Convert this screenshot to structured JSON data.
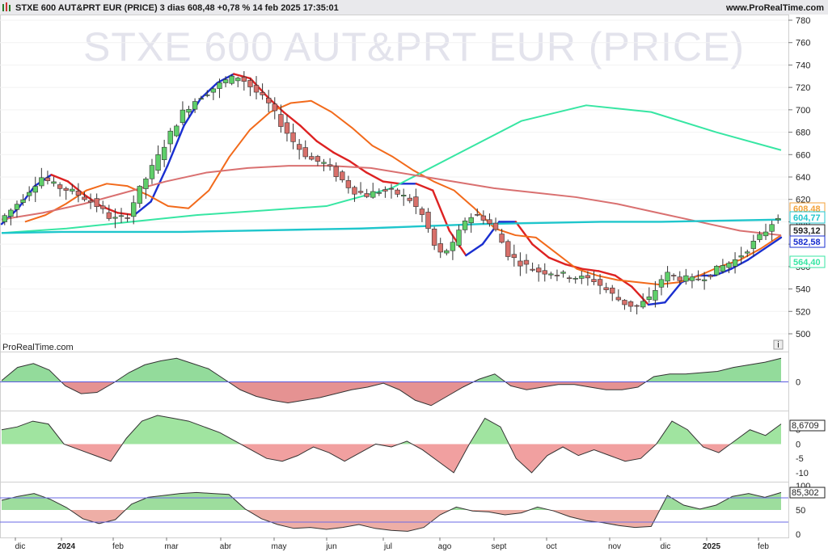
{
  "header": {
    "title_line": "STXE 600 AUT&PRT EUR (PRICE) 3 dias 608,48 +0,78 % 14 feb 2025 17:35:01",
    "site": "www.ProRealTime.com",
    "watermark": "STXE 600 AUT&PRT EUR (PRICE)",
    "brand": "ProRealTime.com",
    "info_icon": "i"
  },
  "colors": {
    "bull": "#5fcf6a",
    "bear": "#d8706a",
    "ma_red": "#dd2222",
    "ma_blue": "#1a2fd0",
    "ma_orange": "#f26a1b",
    "ma_green": "#37e6a3",
    "ma_brown": "#d97070",
    "ma_cyan": "#1fc6cc"
  },
  "chart_data": [
    {
      "type": "candlestick",
      "name": "STXE 600 AUT&PRT EUR (PRICE)",
      "interval": "3 dias",
      "last": "608,48",
      "change": "+0,78 %",
      "date": "14 feb 2025 17:35:01",
      "y_ticks": [
        "780",
        "760",
        "740",
        "720",
        "700",
        "680",
        "660",
        "640",
        "620",
        "600",
        "580",
        "560",
        "540",
        "520",
        "500"
      ],
      "ylim": [
        495,
        785
      ],
      "close_path": [
        600,
        612,
        626,
        640,
        632,
        628,
        622,
        614,
        602,
        604,
        630,
        652,
        676,
        698,
        710,
        718,
        726,
        730,
        718,
        706,
        686,
        668,
        656,
        652,
        640,
        628,
        624,
        628,
        626,
        620,
        604,
        570,
        578,
        604,
        606,
        594,
        570,
        562,
        556,
        555,
        552,
        550,
        548,
        538,
        528,
        524,
        532,
        554,
        550,
        548,
        552,
        560,
        566,
        578,
        590,
        606
      ],
      "overlays": [
        {
          "name": "MA red/blue",
          "colors": [
            "#dd2222",
            "#1a2fd0"
          ],
          "values": [
            598,
            612,
            632,
            642,
            636,
            624,
            614,
            608,
            606,
            618,
            650,
            686,
            710,
            724,
            732,
            728,
            712,
            698,
            686,
            672,
            662,
            654,
            644,
            636,
            634,
            634,
            628,
            592,
            570,
            580,
            600,
            600,
            580,
            568,
            562,
            558,
            556,
            552,
            542,
            526,
            528,
            546,
            552,
            552,
            558,
            566,
            576,
            586
          ]
        },
        {
          "name": "MA orange",
          "color": "#f26a1b",
          "values": [
            600,
            606,
            616,
            628,
            634,
            632,
            624,
            614,
            612,
            628,
            658,
            682,
            698,
            706,
            708,
            698,
            684,
            668,
            658,
            646,
            636,
            628,
            612,
            594,
            588,
            586,
            572,
            558,
            552,
            548,
            546,
            544,
            546,
            552,
            560,
            566,
            576,
            588
          ]
        },
        {
          "name": "MA green",
          "color": "#37e6a3",
          "values": [
            590,
            594,
            600,
            606,
            610,
            614,
            630,
            660,
            690,
            704,
            698,
            680,
            664
          ]
        },
        {
          "name": "MA brown",
          "color": "#d97070",
          "values": [
            602,
            608,
            616,
            626,
            636,
            644,
            648,
            650,
            650,
            648,
            642,
            636,
            630,
            626,
            622,
            616,
            608,
            600,
            592,
            588
          ]
        },
        {
          "name": "MA cyan",
          "color": "#1fc6cc",
          "values": [
            590,
            591,
            591,
            591,
            592,
            593,
            594,
            596,
            598,
            599,
            600,
            600,
            601,
            602
          ]
        }
      ],
      "price_labels": [
        {
          "value": "608,48",
          "color": "#f3a23a"
        },
        {
          "value": "604,77",
          "color": "#1fc6cc"
        },
        {
          "value": "593,12",
          "color": "#222222"
        },
        {
          "value": "582,58",
          "color": "#1a2fd0"
        },
        {
          "value": "564,40",
          "color": "#37e6a3"
        }
      ]
    },
    {
      "type": "area",
      "name": "oscillator-1",
      "y_ticks": [
        "0"
      ],
      "ylim": [
        -1,
        1
      ],
      "values": [
        0.05,
        0.55,
        0.7,
        0.45,
        -0.15,
        -0.45,
        -0.4,
        -0.05,
        0.35,
        0.65,
        0.8,
        0.9,
        0.7,
        0.5,
        0.1,
        -0.3,
        -0.55,
        -0.7,
        -0.8,
        -0.7,
        -0.6,
        -0.45,
        -0.3,
        -0.2,
        -0.05,
        -0.3,
        -0.7,
        -0.9,
        -0.55,
        -0.2,
        0.1,
        0.3,
        -0.15,
        -0.3,
        -0.2,
        -0.1,
        -0.1,
        -0.2,
        -0.3,
        -0.3,
        -0.2,
        0.2,
        0.3,
        0.3,
        0.35,
        0.4,
        0.55,
        0.65,
        0.75,
        0.9
      ]
    },
    {
      "type": "area",
      "name": "oscillator-2",
      "y_ticks": [
        "5",
        "0",
        "-5",
        "-10"
      ],
      "ylim": [
        -12,
        10
      ],
      "last_label": "8,6709",
      "values": [
        5,
        6,
        8,
        7,
        0,
        -2,
        -4,
        -6,
        2,
        8,
        10,
        9,
        8,
        6,
        4,
        1,
        -2,
        -5,
        -6,
        -4,
        -1,
        -3,
        -6,
        -3,
        0,
        -1,
        1,
        -2,
        -6,
        -10,
        0,
        9,
        6,
        -5,
        -10,
        -4,
        -1,
        -4,
        -2,
        -4,
        -6,
        -5,
        0,
        8,
        5,
        -1,
        -3,
        1,
        5,
        3,
        7
      ]
    },
    {
      "type": "area",
      "name": "oscillator-3",
      "y_ticks": [
        "100",
        "50",
        "0"
      ],
      "ylim": [
        0,
        100
      ],
      "levels": [
        75,
        25
      ],
      "last_label": "85,302",
      "values": [
        70,
        78,
        84,
        72,
        55,
        32,
        22,
        30,
        62,
        76,
        80,
        84,
        86,
        84,
        82,
        52,
        32,
        20,
        12,
        14,
        10,
        14,
        20,
        12,
        8,
        6,
        14,
        40,
        56,
        48,
        46,
        40,
        44,
        56,
        48,
        36,
        28,
        24,
        18,
        14,
        16,
        80,
        60,
        52,
        60,
        78,
        84,
        76,
        86
      ]
    }
  ],
  "x_axis": {
    "months": [
      {
        "label": "dic",
        "bold": false
      },
      {
        "label": "2024",
        "bold": true
      },
      {
        "label": "feb",
        "bold": false
      },
      {
        "label": "mar",
        "bold": false
      },
      {
        "label": "abr",
        "bold": false
      },
      {
        "label": "may",
        "bold": false
      },
      {
        "label": "jun",
        "bold": false
      },
      {
        "label": "jul",
        "bold": false
      },
      {
        "label": "ago",
        "bold": false
      },
      {
        "label": "sept",
        "bold": false
      },
      {
        "label": "oct",
        "bold": false
      },
      {
        "label": "nov",
        "bold": false
      },
      {
        "label": "dic",
        "bold": false
      },
      {
        "label": "2025",
        "bold": true
      },
      {
        "label": "feb",
        "bold": false
      }
    ]
  }
}
